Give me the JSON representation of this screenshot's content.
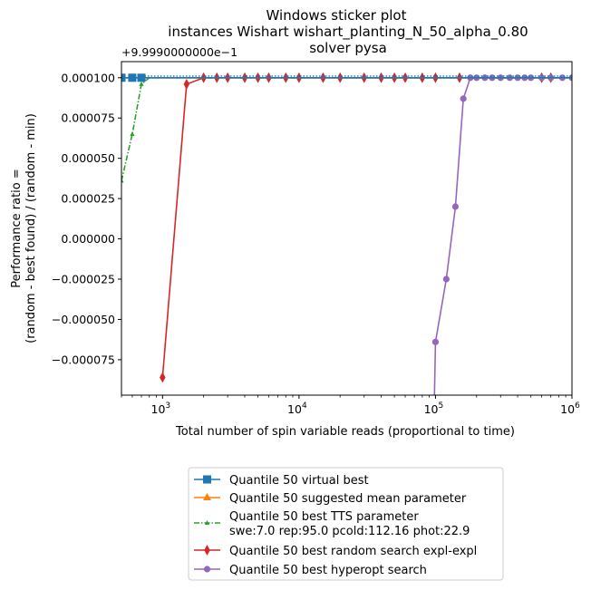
{
  "chart_data": {
    "type": "line",
    "title_lines": [
      "Windows sticker plot",
      "instances Wishart wishart_planting_N_50_alpha_0.80",
      "solver pysa"
    ],
    "offset_text": "+9.9990000000e−1",
    "xlabel": "Total number of spin variable reads (proportional to time)",
    "ylabel_lines": [
      "Performance ratio =",
      "(random - best found) / (random - min)"
    ],
    "x_scale": "log",
    "xlim": [
      500,
      1000000
    ],
    "ylim": [
      -9.7e-05,
      0.00011
    ],
    "x_ticks": [
      {
        "value": 1000,
        "base": "10",
        "exp": "3"
      },
      {
        "value": 10000,
        "base": "10",
        "exp": "4"
      },
      {
        "value": 100000,
        "base": "10",
        "exp": "5"
      },
      {
        "value": 1000000,
        "base": "10",
        "exp": "6"
      }
    ],
    "y_ticks": [
      {
        "value": 0.0001,
        "label": "0.000100"
      },
      {
        "value": 7.5e-05,
        "label": "0.000075"
      },
      {
        "value": 5e-05,
        "label": "0.000050"
      },
      {
        "value": 2.5e-05,
        "label": "0.000025"
      },
      {
        "value": 0.0,
        "label": "0.000000"
      },
      {
        "value": -2.5e-05,
        "label": "−0.000025"
      },
      {
        "value": -5e-05,
        "label": "−0.000050"
      },
      {
        "value": -7.5e-05,
        "label": "−0.000075"
      }
    ],
    "legend_position": "below",
    "series": [
      {
        "name": "Quantile 50 virtual best",
        "color": "#1f77b4",
        "marker": "square",
        "dash": "solid",
        "x": [
          500,
          600,
          700,
          1000,
          1500,
          2000,
          3000,
          5000,
          10000,
          100000,
          1000000
        ],
        "y": [
          0.0001,
          0.0001,
          0.0001,
          0.0001,
          0.0001,
          0.0001,
          0.0001,
          0.0001,
          0.0001,
          0.0001,
          0.0001
        ],
        "marker_x": [
          500,
          600,
          700
        ]
      },
      {
        "name": "Quantile 50 suggested mean parameter",
        "color": "#ff7f0e",
        "marker": "triangle",
        "dash": "solid",
        "x": [
          500,
          1000,
          10000,
          100000,
          1000000
        ],
        "y": [
          0.0001,
          0.0001,
          0.0001,
          0.0001,
          0.0001
        ],
        "marker_x": []
      },
      {
        "name": "Quantile 50 best TTS parameter",
        "name2": "swe:7.0 rep:95.0 pcold:112.16 phot:22.9",
        "color": "#2ca02c",
        "marker": "star",
        "dash": "dashdot",
        "x": [
          500,
          600,
          700,
          800,
          1000,
          2000,
          10000,
          100000,
          1000000
        ],
        "y": [
          3.6e-05,
          6.5e-05,
          9.6e-05,
          0.0001,
          0.0001,
          0.0001,
          0.0001,
          0.0001,
          0.0001
        ],
        "marker_x": [
          500,
          600,
          700
        ]
      },
      {
        "name": "Quantile 50  best random search expl-expl",
        "color": "#d62728",
        "marker": "diamond",
        "dash": "solid",
        "x": [
          1000,
          1500,
          2000,
          2500,
          3000,
          4000,
          5000,
          6000,
          8000,
          10000,
          15000,
          20000,
          30000,
          40000,
          50000,
          60000,
          80000,
          100000,
          150000,
          200000,
          300000,
          500000,
          700000,
          1000000
        ],
        "y": [
          -8.6e-05,
          9.6e-05,
          0.0001,
          0.0001,
          0.0001,
          0.0001,
          0.0001,
          0.0001,
          0.0001,
          0.0001,
          0.0001,
          0.0001,
          0.0001,
          0.0001,
          0.0001,
          0.0001,
          0.0001,
          0.0001,
          0.0001,
          0.0001,
          0.0001,
          0.0001,
          0.0001,
          0.0001
        ],
        "marker_x": [
          1000,
          1500,
          2000,
          2500,
          3000,
          4000,
          5000,
          6000,
          8000,
          10000,
          15000,
          20000,
          30000,
          40000,
          50000,
          60000,
          80000,
          100000,
          150000,
          600000,
          700000
        ]
      },
      {
        "name": "Quantile 50 best hyperopt search",
        "color": "#9467bd",
        "marker": "circle",
        "dash": "solid",
        "x": [
          93000,
          100000,
          120000,
          140000,
          160000,
          180000,
          200000,
          230000,
          260000,
          300000,
          350000,
          400000,
          450000,
          500000,
          600000,
          700000,
          850000,
          1000000
        ],
        "y": [
          -0.0002,
          -6.4e-05,
          -2.5e-05,
          2e-05,
          8.7e-05,
          0.0001,
          0.0001,
          0.0001,
          0.0001,
          0.0001,
          0.0001,
          0.0001,
          0.0001,
          0.0001,
          0.0001,
          0.0001,
          0.0001,
          0.0001
        ],
        "marker_x": [
          100000,
          120000,
          140000,
          160000,
          180000,
          200000,
          230000,
          260000,
          300000,
          350000,
          400000,
          450000,
          500000,
          600000,
          700000,
          850000,
          1000000
        ]
      }
    ]
  }
}
